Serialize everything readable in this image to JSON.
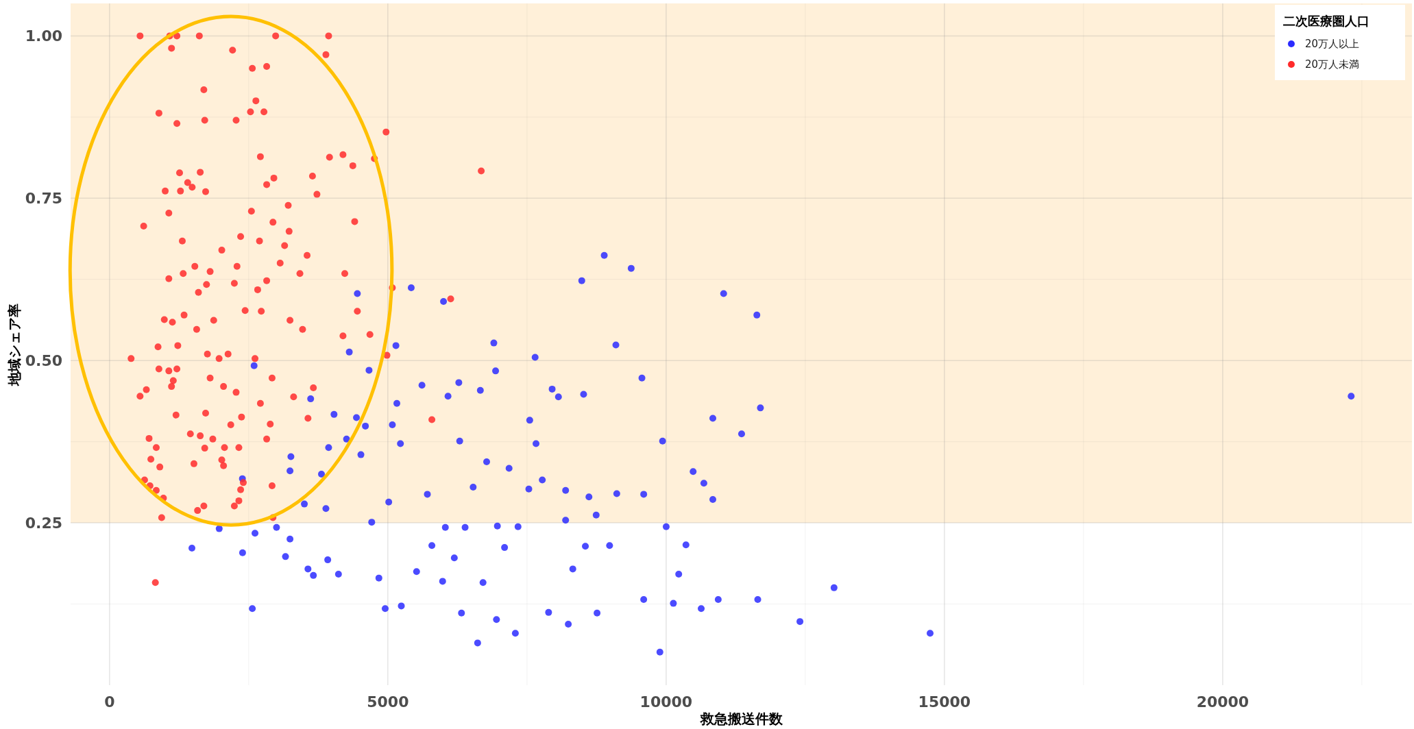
{
  "chart_data": {
    "type": "scatter",
    "xlabel": "救急搬送件数",
    "ylabel": "地域シェア率",
    "legend_title": "二次医療圏人口",
    "xlim": [
      -700,
      23400
    ],
    "ylim": [
      0.0,
      1.05
    ],
    "xticks": [
      0,
      5000,
      10000,
      15000,
      20000
    ],
    "yticks": [
      0.25,
      {
        "value": 0.5,
        "label": "0.50"
      },
      0.75,
      {
        "value": 1.0,
        "label": "1.00"
      }
    ],
    "grid": true,
    "legend": "top right",
    "marker": "circle",
    "bands": [
      {
        "axis": "y",
        "from": 0.25,
        "to": 1.05,
        "color": "#fff0d9"
      }
    ],
    "series": [
      {
        "name": "20万人以上",
        "color": "#2b2bff",
        "x": [
          1480,
          1970,
          2390,
          2565,
          2613,
          2597,
          2387,
          3000,
          3161,
          3242,
          3242,
          3258,
          3613,
          3500,
          3565,
          3662,
          3807,
          3887,
          3920,
          3936,
          4033,
          4113,
          4258,
          4307,
          4436,
          4452,
          4516,
          4597,
          4662,
          4710,
          4839,
          4952,
          5016,
          5081,
          5145,
          5162,
          5226,
          5420,
          5516,
          5613,
          5710,
          5791,
          5984,
          6033,
          6000,
          6081,
          6194,
          6291,
          6275,
          6323,
          6388,
          6533,
          6662,
          6710,
          6613,
          6775,
          6904,
          6936,
          6968,
          6952,
          7097,
          7178,
          7291,
          7339,
          7549,
          7533,
          7646,
          7662,
          7775,
          7888,
          7952,
          8065,
          8194,
          8242,
          8194,
          8323,
          8484,
          8517,
          8549,
          8613,
          8759,
          8743,
          8888,
          8984,
          9097,
          9113,
          9372,
          9565,
          9597,
          9597,
          9888,
          9936,
          10001,
          10130,
          10226,
          10356,
          10485,
          10630,
          10678,
          10839,
          10839,
          11033,
          10936,
          11356,
          11630,
          11694,
          11646,
          12404,
          13017,
          14743,
          22308,
          5242
        ],
        "values": [
          0.211,
          0.241,
          0.204,
          0.118,
          0.234,
          0.492,
          0.318,
          0.243,
          0.198,
          0.225,
          0.33,
          0.352,
          0.441,
          0.279,
          0.179,
          0.169,
          0.325,
          0.272,
          0.193,
          0.366,
          0.417,
          0.171,
          0.379,
          0.513,
          0.412,
          0.603,
          0.355,
          0.399,
          0.485,
          0.251,
          0.165,
          0.118,
          0.282,
          0.401,
          0.523,
          0.434,
          0.372,
          0.612,
          0.175,
          0.462,
          0.294,
          0.215,
          0.16,
          0.243,
          0.591,
          0.445,
          0.196,
          0.376,
          0.466,
          0.111,
          0.243,
          0.305,
          0.454,
          0.158,
          0.065,
          0.344,
          0.527,
          0.484,
          0.245,
          0.101,
          0.212,
          0.334,
          0.08,
          0.244,
          0.408,
          0.302,
          0.505,
          0.372,
          0.316,
          0.112,
          0.456,
          0.444,
          0.254,
          0.094,
          0.3,
          0.179,
          0.623,
          0.448,
          0.214,
          0.29,
          0.111,
          0.262,
          0.662,
          0.215,
          0.524,
          0.295,
          0.642,
          0.473,
          0.294,
          0.132,
          0.051,
          0.376,
          0.244,
          0.126,
          0.171,
          0.216,
          0.329,
          0.118,
          0.311,
          0.411,
          0.286,
          0.603,
          0.132,
          0.387,
          0.57,
          0.427,
          0.132,
          0.098,
          0.15,
          0.08,
          0.445,
          0.122
        ]
      },
      {
        "name": "20万人未満",
        "color": "#ff2b2b",
        "x": [
          823,
          548,
          1081,
          1210,
          1613,
          2984,
          3936,
          1113,
          2210,
          3887,
          2565,
          2823,
          1694,
          2629,
          2532,
          2774,
          887,
          1210,
          2274,
          1710,
          4968,
          2710,
          3952,
          4194,
          4371,
          4758,
          6678,
          1258,
          1629,
          2952,
          3646,
          2823,
          1403,
          1000,
          1726,
          1274,
          1484,
          3726,
          2549,
          1065,
          3210,
          2936,
          4404,
          2355,
          613,
          2016,
          1307,
          2694,
          3145,
          3549,
          3226,
          1807,
          1532,
          1065,
          1323,
          1742,
          2242,
          2823,
          3420,
          4226,
          3065,
          2290,
          2661,
          5081,
          6129,
          1597,
          2436,
          2726,
          3242,
          4452,
          1339,
          984,
          1129,
          1871,
          3468,
          4194,
          4678,
          1565,
          871,
          1226,
          1210,
          387,
          1758,
          2129,
          2613,
          1968,
          887,
          1065,
          4984,
          1807,
          1145,
          2920,
          661,
          2048,
          1113,
          3662,
          2274,
          548,
          3307,
          2710,
          1194,
          1726,
          2371,
          3565,
          5791,
          2178,
          2887,
          1452,
          1629,
          710,
          1855,
          2823,
          839,
          2065,
          1710,
          2323,
          742,
          1516,
          2048,
          903,
          2403,
          629,
          2920,
          726,
          839,
          2355,
          968,
          1694,
          2323,
          936,
          1581,
          2242,
          2936,
          2016
        ],
        "values": [
          0.158,
          1.0,
          1.0,
          1.0,
          1.0,
          1.0,
          1.0,
          0.981,
          0.978,
          0.971,
          0.95,
          0.953,
          0.917,
          0.9,
          0.883,
          0.883,
          0.881,
          0.865,
          0.87,
          0.87,
          0.852,
          0.814,
          0.813,
          0.817,
          0.8,
          0.811,
          0.792,
          0.789,
          0.79,
          0.781,
          0.784,
          0.771,
          0.774,
          0.761,
          0.76,
          0.761,
          0.767,
          0.756,
          0.73,
          0.727,
          0.739,
          0.713,
          0.714,
          0.691,
          0.707,
          0.67,
          0.684,
          0.684,
          0.677,
          0.662,
          0.699,
          0.637,
          0.645,
          0.626,
          0.634,
          0.617,
          0.619,
          0.623,
          0.634,
          0.634,
          0.65,
          0.645,
          0.609,
          0.612,
          0.595,
          0.605,
          0.577,
          0.576,
          0.562,
          0.576,
          0.57,
          0.563,
          0.559,
          0.562,
          0.548,
          0.538,
          0.54,
          0.548,
          0.521,
          0.523,
          0.487,
          0.503,
          0.51,
          0.51,
          0.503,
          0.503,
          0.487,
          0.484,
          0.508,
          0.473,
          0.469,
          0.473,
          0.455,
          0.46,
          0.46,
          0.458,
          0.451,
          0.445,
          0.444,
          0.434,
          0.416,
          0.419,
          0.413,
          0.411,
          0.409,
          0.401,
          0.402,
          0.387,
          0.384,
          0.38,
          0.379,
          0.379,
          0.366,
          0.366,
          0.365,
          0.366,
          0.348,
          0.341,
          0.338,
          0.336,
          0.312,
          0.316,
          0.307,
          0.307,
          0.3,
          0.301,
          0.288,
          0.276,
          0.284,
          0.258,
          0.269,
          0.276,
          0.258,
          0.347
        ]
      }
    ]
  }
}
